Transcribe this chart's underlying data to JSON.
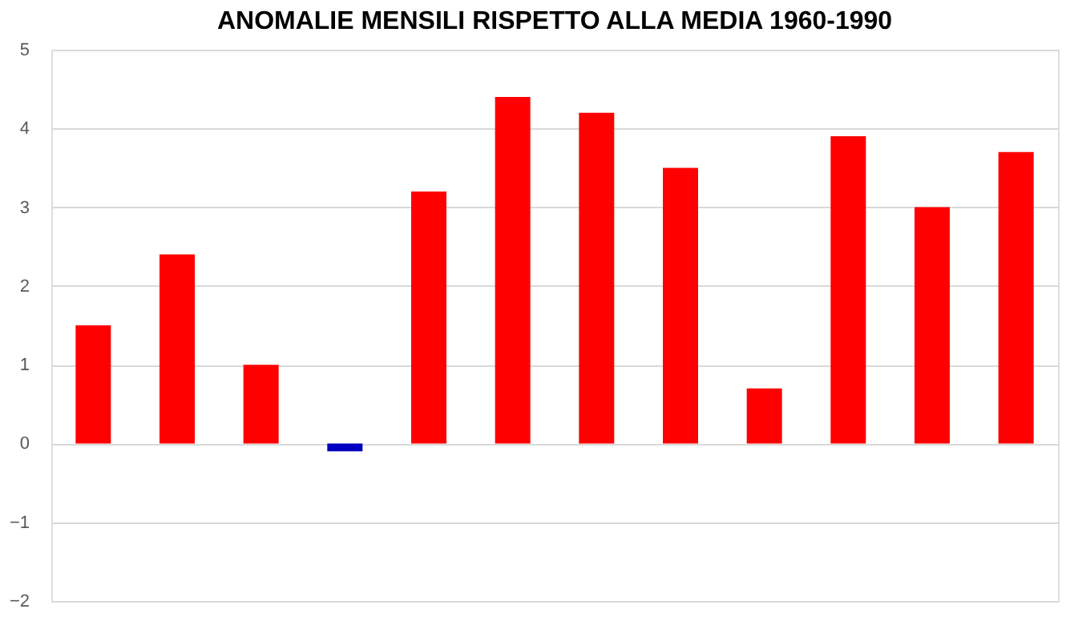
{
  "chart_data": {
    "type": "bar",
    "title": "ANOMALIE MENSILI RISPETTO ALLA MEDIA 1960-1990",
    "categories": [
      null,
      null,
      null,
      null,
      null,
      null,
      null,
      null,
      null,
      null,
      null,
      null
    ],
    "values": [
      1.5,
      2.4,
      1.0,
      -0.1,
      3.2,
      4.4,
      4.2,
      3.5,
      0.7,
      3.9,
      3.0,
      3.7
    ],
    "colors": [
      "#ff0000",
      "#ff0000",
      "#ff0000",
      "#0000c0",
      "#ff0000",
      "#ff0000",
      "#ff0000",
      "#ff0000",
      "#ff0000",
      "#ff0000",
      "#ff0000",
      "#ff0000"
    ],
    "ylim": [
      -2,
      5
    ],
    "yticks": [
      -2,
      -1,
      0,
      1,
      2,
      3,
      4,
      5
    ],
    "grid": "y"
  }
}
